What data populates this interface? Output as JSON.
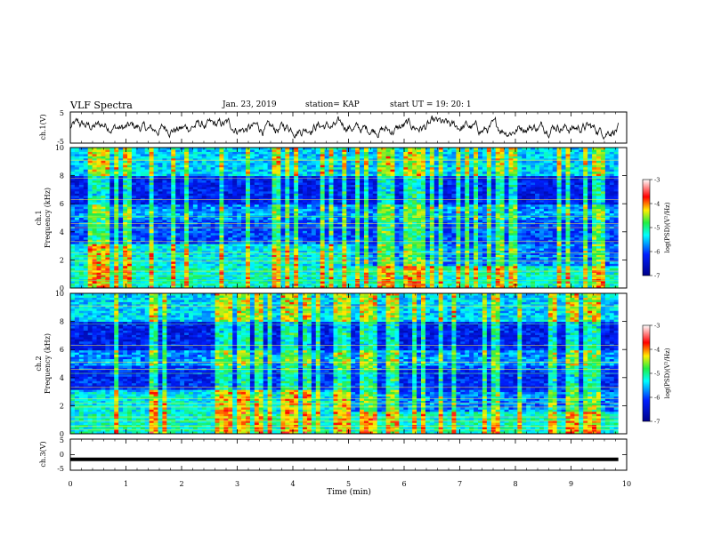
{
  "header": {
    "title": "VLF Spectra",
    "date": "Jan. 23, 2019",
    "station": "station= KAP",
    "start": "start  UT =   19: 20: 1"
  },
  "colors": {
    "spectrum_low": "#0000a0",
    "spectrum_mid": "#00ffff",
    "spectrum_green": "#22dd44",
    "spectrum_yellow": "#ffee00",
    "spectrum_high": "#ff0000"
  },
  "chart_data": [
    {
      "type": "line",
      "panel": "ch1-waveform",
      "ylabel": "ch.1(V)",
      "ylim": [
        -5,
        5
      ],
      "yticks": [
        "5",
        "-5"
      ],
      "xlim": [
        0,
        10
      ],
      "description_values": "noisy waveform around 0 V, amplitude roughly -2 to +3 V"
    },
    {
      "type": "heatmap",
      "panel": "ch1-spectrogram",
      "ylabel": "ch.1\nFrequency (kHz)",
      "ylabel_line1": "ch.1",
      "ylabel_line2": "Frequency (kHz)",
      "ylim": [
        0,
        10
      ],
      "yticks": [
        "0",
        "2",
        "4",
        "6",
        "8",
        "10"
      ],
      "xlim": [
        0,
        10
      ],
      "colorbar": {
        "label": "log(PSD)(V²/Hz)",
        "range": [
          -7,
          -3
        ],
        "ticks": [
          "-3",
          "-4",
          "-5",
          "-6",
          "-7"
        ]
      }
    },
    {
      "type": "heatmap",
      "panel": "ch2-spectrogram",
      "ylabel_line1": "ch.2",
      "ylabel_line2": "Frequency (kHz)",
      "ylim": [
        0,
        10
      ],
      "yticks": [
        "0",
        "2",
        "4",
        "6",
        "8",
        "10"
      ],
      "xlim": [
        0,
        10
      ],
      "colorbar": {
        "label": "log(PSD)(V²/Hz)",
        "range": [
          -7,
          -3
        ],
        "ticks": [
          "-3",
          "-4",
          "-5",
          "-6",
          "-7"
        ]
      }
    },
    {
      "type": "line",
      "panel": "ch3-waveform",
      "ylabel": "ch.3(V)",
      "ylim": [
        -5,
        5
      ],
      "yticks": [
        "5",
        "0",
        "-5"
      ],
      "xlim": [
        0,
        9.85
      ],
      "x": [
        0,
        9.85
      ],
      "y": [
        -1.5,
        -1.5
      ]
    }
  ],
  "xaxis": {
    "label": "Time (min)",
    "ticks": [
      "0",
      "1",
      "2",
      "3",
      "4",
      "5",
      "6",
      "7",
      "8",
      "9",
      "10"
    ]
  }
}
